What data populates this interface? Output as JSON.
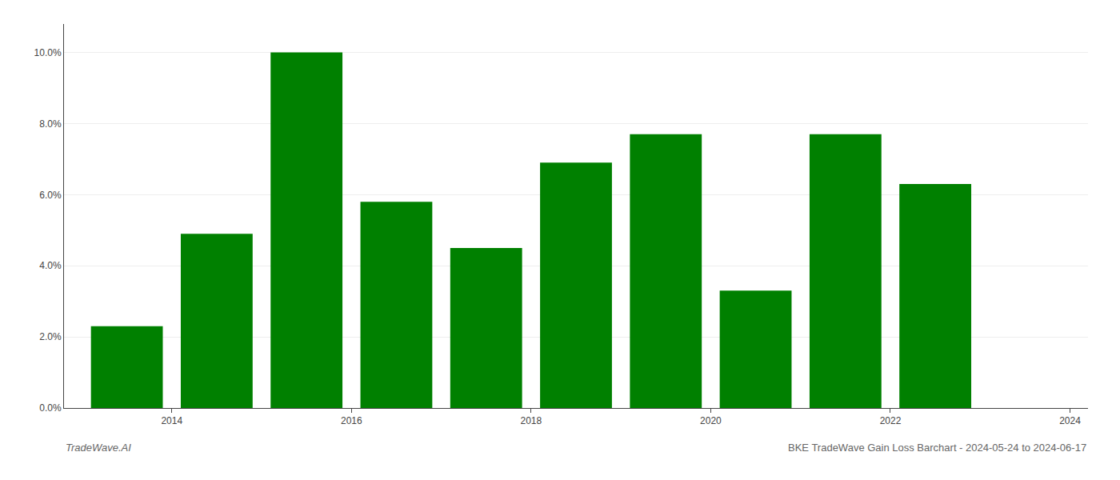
{
  "chart_data": {
    "type": "bar",
    "title": "BKE TradeWave Gain Loss Barchart - 2024-05-24 to 2024-06-17",
    "annotations": [
      "TradeWave.AI"
    ],
    "x": [
      2014,
      2015,
      2016,
      2017,
      2018,
      2019,
      2020,
      2021,
      2022,
      2023
    ],
    "values": [
      0.023,
      0.049,
      0.1,
      0.058,
      0.045,
      0.069,
      0.077,
      0.033,
      0.077,
      0.063
    ],
    "color": "#008000",
    "xlim": [
      2013.3,
      2024.7
    ],
    "xticks": [
      {
        "value": 2014.5,
        "label": "2014"
      },
      {
        "value": 2016.5,
        "label": "2016"
      },
      {
        "value": 2018.5,
        "label": "2018"
      },
      {
        "value": 2020.5,
        "label": "2020"
      },
      {
        "value": 2022.5,
        "label": "2022"
      },
      {
        "value": 2024.5,
        "label": "2024"
      }
    ],
    "ylim": [
      0,
      0.108
    ],
    "yticks": [
      {
        "value": 0.0,
        "label": "0.0%"
      },
      {
        "value": 0.02,
        "label": "2.0%"
      },
      {
        "value": 0.04,
        "label": "4.0%"
      },
      {
        "value": 0.06,
        "label": "6.0%"
      },
      {
        "value": 0.08,
        "label": "8.0%"
      },
      {
        "value": 0.1,
        "label": "10.0%"
      }
    ],
    "grid": true
  }
}
